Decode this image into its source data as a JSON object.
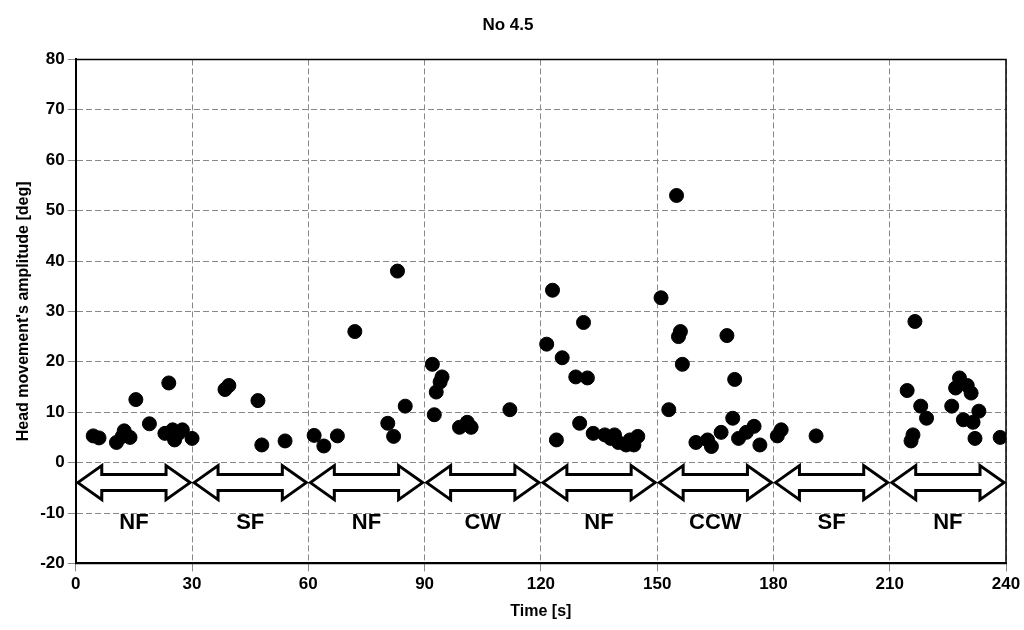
{
  "chart_data": {
    "type": "scatter",
    "title": "No 4.5",
    "xlabel": "Time [s]",
    "ylabel": "Head movement's amplitude [deg]",
    "xlim": [
      0,
      240
    ],
    "xticks": [
      0,
      30,
      60,
      90,
      120,
      150,
      180,
      210,
      240
    ],
    "ylim": [
      -20,
      80
    ],
    "yticks": [
      -20,
      -10,
      0,
      10,
      20,
      30,
      40,
      50,
      60,
      70,
      80
    ],
    "grid": true,
    "marker": "circle",
    "legend": false,
    "series": [
      {
        "color": "#000000",
        "x": [
          4.5,
          6,
          10.5,
          12,
          12.5,
          14,
          15.5,
          19,
          23,
          24,
          25,
          25.5,
          26.5,
          27.5,
          30,
          38.5,
          39.5,
          47,
          48,
          54,
          61.5,
          64,
          67.5,
          72,
          80.5,
          82,
          83,
          85,
          92,
          92.5,
          93,
          94,
          94.5,
          99,
          101,
          102,
          112,
          121.5,
          123,
          124,
          125.5,
          129,
          130,
          131,
          132,
          133.5,
          136.5,
          138,
          139,
          140,
          142,
          143,
          144,
          145,
          151,
          153,
          155,
          155.5,
          156,
          156.5,
          160,
          163,
          164,
          166.5,
          168,
          169.5,
          170,
          171,
          173,
          175,
          176.5,
          181,
          182,
          191,
          214.5,
          215.5,
          216,
          216.5,
          218,
          219.5,
          226,
          227,
          228,
          229,
          230,
          231,
          231.5,
          232,
          233,
          238.5
        ],
        "values": [
          5.3,
          4.9,
          4.0,
          5.2,
          6.3,
          5.0,
          12.5,
          7.7,
          5.8,
          15.8,
          6.5,
          4.5,
          5.8,
          6.5,
          4.8,
          14.5,
          15.3,
          12.3,
          3.5,
          4.3,
          5.4,
          3.3,
          5.3,
          26,
          7.8,
          5.2,
          38,
          11.2,
          19.5,
          9.5,
          14,
          16,
          17,
          7,
          8,
          7,
          10.5,
          23.5,
          34.2,
          4.5,
          20.8,
          17,
          7.8,
          27.8,
          16.8,
          5.8,
          5.5,
          4.8,
          5.5,
          4,
          3.5,
          4.5,
          3.5,
          5.2,
          32.7,
          10.5,
          53,
          25,
          26,
          19.5,
          4,
          4.5,
          3.2,
          6,
          25.2,
          8.8,
          16.5,
          4.8,
          6,
          7.2,
          3.5,
          5.3,
          6.5,
          5.3,
          14.3,
          4.3,
          5.5,
          28,
          11.2,
          8.8,
          11.2,
          14.8,
          16.8,
          8.5,
          15.3,
          13.8,
          8,
          4.8,
          10.2,
          5
        ]
      }
    ],
    "annotations": [
      "NF",
      "SF",
      "NF",
      "CW",
      "NF",
      "CCW",
      "SF",
      "NF"
    ]
  }
}
